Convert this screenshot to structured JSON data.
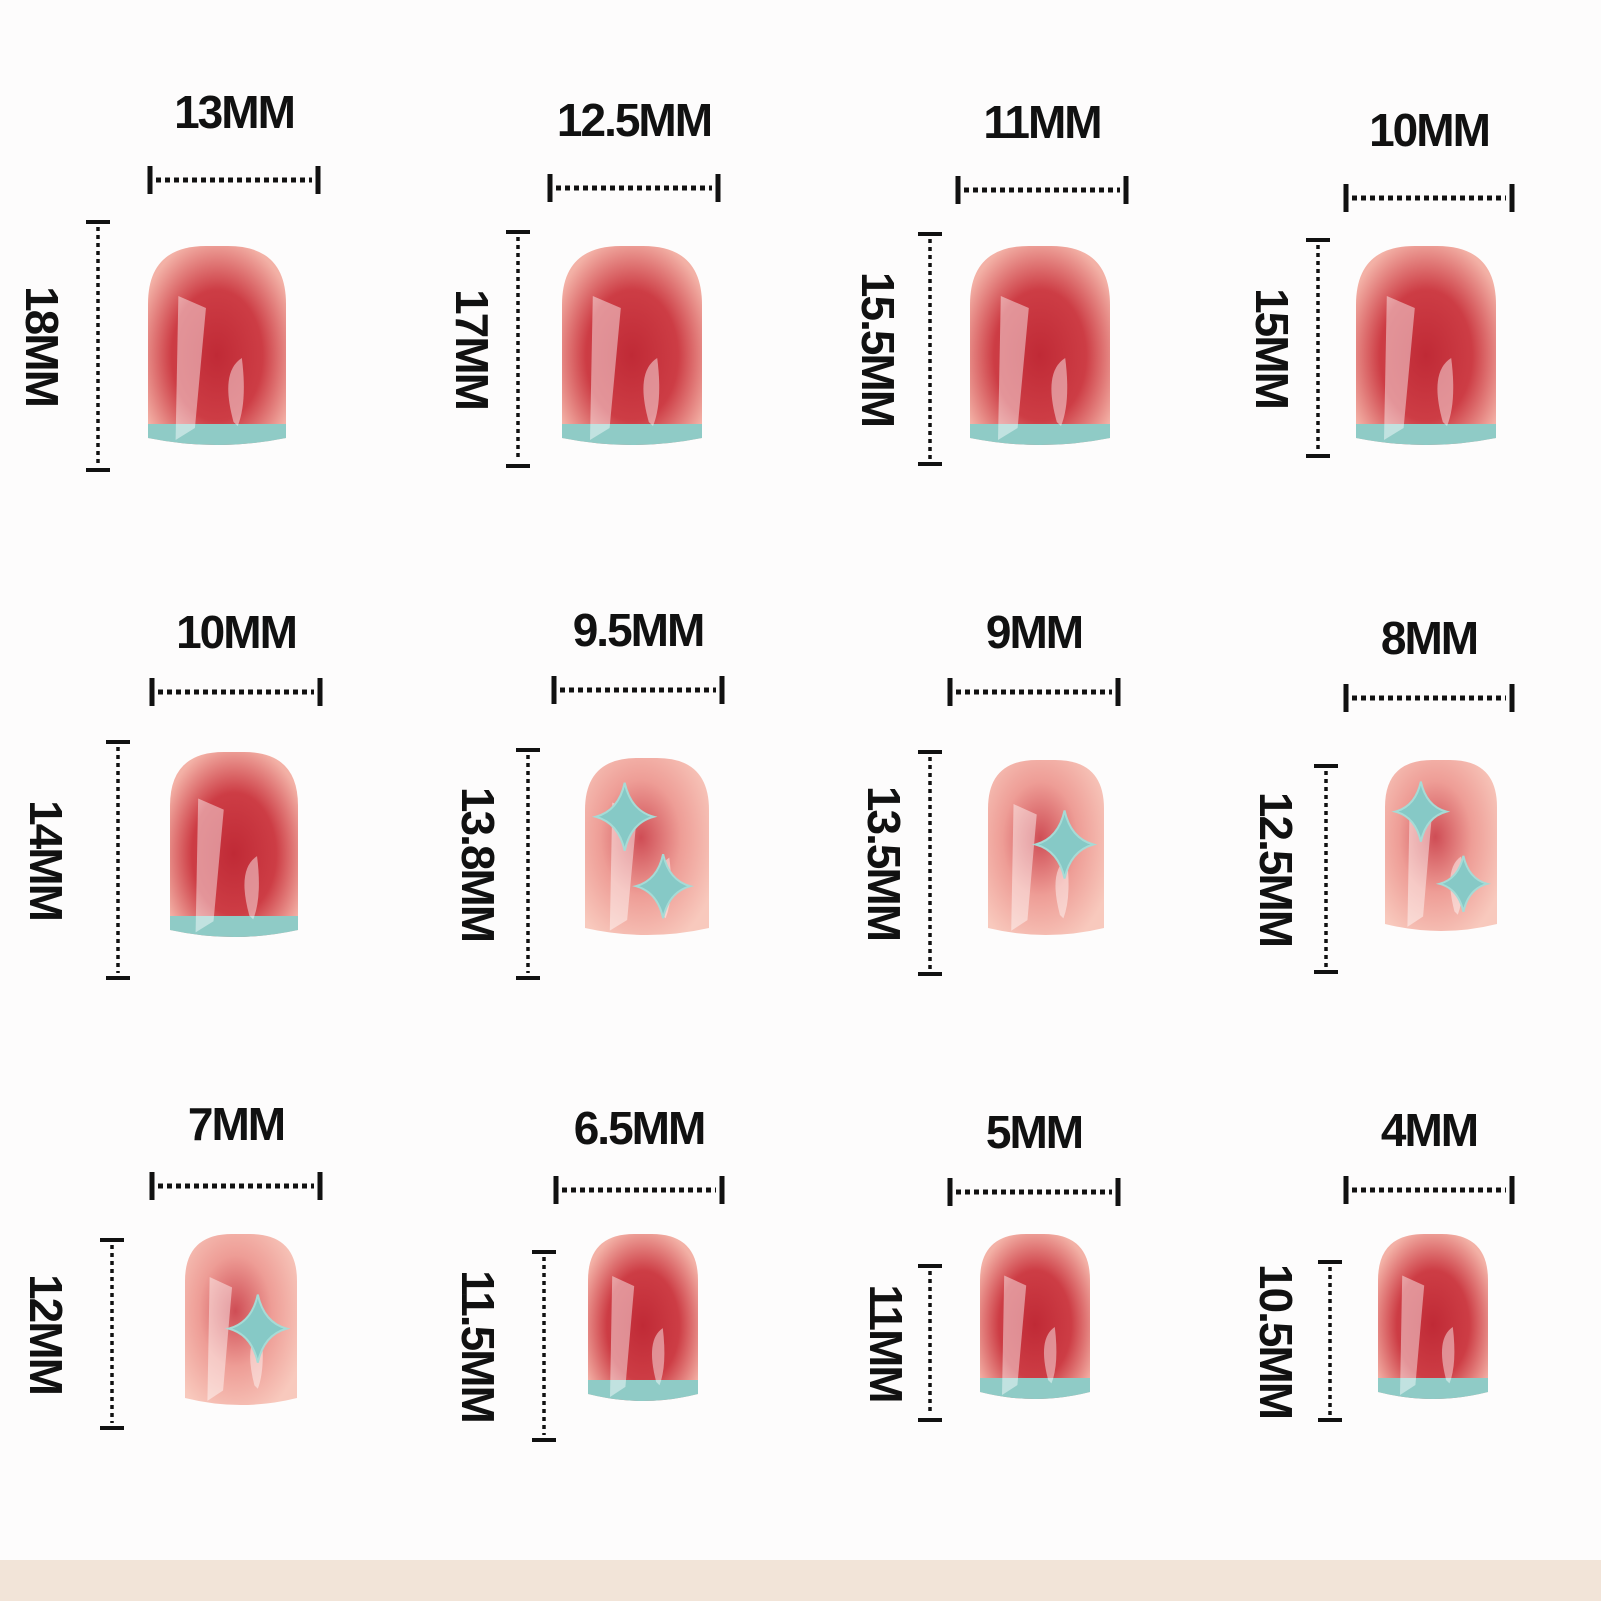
{
  "colors": {
    "background": "#fdfcfc",
    "ink": "#111111",
    "nail_red": "#c8333d",
    "nail_pink": "#f4b7aa",
    "tip_teal": "#8fcbc6",
    "bottom_band": "#f2e4d8"
  },
  "nails": [
    {
      "width": "13MM",
      "length": "18MM",
      "design": "french-tip"
    },
    {
      "width": "12.5MM",
      "length": "17MM",
      "design": "french-tip"
    },
    {
      "width": "11MM",
      "length": "15.5MM",
      "design": "french-tip"
    },
    {
      "width": "10MM",
      "length": "15MM",
      "design": "french-tip"
    },
    {
      "width": "10MM",
      "length": "14MM",
      "design": "french-tip"
    },
    {
      "width": "9.5MM",
      "length": "13.8MM",
      "design": "sparkle"
    },
    {
      "width": "9MM",
      "length": "13.5MM",
      "design": "sparkle"
    },
    {
      "width": "8MM",
      "length": "12.5MM",
      "design": "sparkle"
    },
    {
      "width": "7MM",
      "length": "12MM",
      "design": "sparkle"
    },
    {
      "width": "6.5MM",
      "length": "11.5MM",
      "design": "french-tip"
    },
    {
      "width": "5MM",
      "length": "11MM",
      "design": "french-tip"
    },
    {
      "width": "4MM",
      "length": "10.5MM",
      "design": "french-tip"
    }
  ]
}
